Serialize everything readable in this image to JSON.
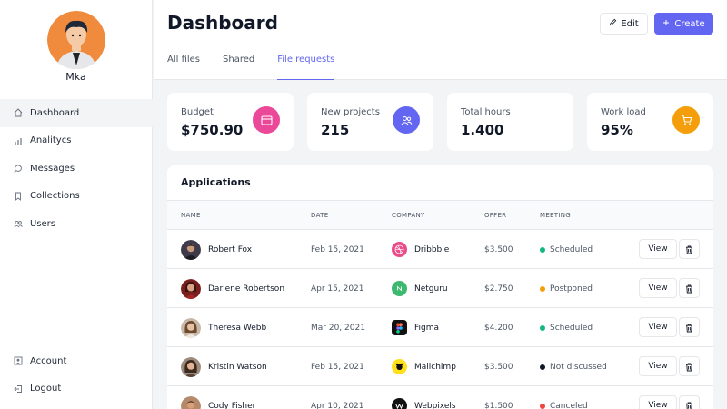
{
  "user": {
    "name": "Mka"
  },
  "nav": {
    "main": [
      {
        "label": "Dashboard",
        "icon": "home-icon"
      },
      {
        "label": "Analitycs",
        "icon": "chart-icon"
      },
      {
        "label": "Messages",
        "icon": "chat-icon"
      },
      {
        "label": "Collections",
        "icon": "bookmark-icon"
      },
      {
        "label": "Users",
        "icon": "users-icon"
      }
    ],
    "bottom": [
      {
        "label": "Account",
        "icon": "account-icon"
      },
      {
        "label": "Logout",
        "icon": "logout-icon"
      }
    ]
  },
  "header": {
    "title": "Dashboard",
    "edit_label": "Edit",
    "create_label": "Create",
    "tabs": [
      "All files",
      "Shared",
      "File requests"
    ],
    "active_tab": "File requests"
  },
  "stats": [
    {
      "label": "Budget",
      "value": "$750.90",
      "icon": "credit-card-icon",
      "color": "#ec4899"
    },
    {
      "label": "New projects",
      "value": "215",
      "icon": "users-icon",
      "color": "#6366f1"
    },
    {
      "label": "Total hours",
      "value": "1.400",
      "icon": "",
      "color": ""
    },
    {
      "label": "Work load",
      "value": "95%",
      "icon": "shopping-cart-icon",
      "color": "#f59e0b"
    }
  ],
  "applications": {
    "title": "Applications",
    "columns": [
      "NAME",
      "DATE",
      "COMPANY",
      "OFFER",
      "MEETING"
    ],
    "view_label": "View",
    "rows": [
      {
        "name": "Robert Fox",
        "date": "Feb 15, 2021",
        "company": "Dribbble",
        "offer": "$3.500",
        "meeting": "Scheduled",
        "status_color": "#10b981",
        "logo_color": "#ea4c89"
      },
      {
        "name": "Darlene Robertson",
        "date": "Apr 15, 2021",
        "company": "Netguru",
        "offer": "$2.750",
        "meeting": "Postponed",
        "status_color": "#f59e0b",
        "logo_color": "#3cb96e"
      },
      {
        "name": "Theresa Webb",
        "date": "Mar 20, 2021",
        "company": "Figma",
        "offer": "$4.200",
        "meeting": "Scheduled",
        "status_color": "#10b981",
        "logo_color": "#111111"
      },
      {
        "name": "Kristin Watson",
        "date": "Feb 15, 2021",
        "company": "Mailchimp",
        "offer": "$3.500",
        "meeting": "Not discussed",
        "status_color": "#111827",
        "logo_color": "#ffe01b"
      },
      {
        "name": "Cody Fisher",
        "date": "Apr 10, 2021",
        "company": "Webpixels",
        "offer": "$1.500",
        "meeting": "Canceled",
        "status_color": "#ef4444",
        "logo_color": "#111111"
      }
    ]
  }
}
